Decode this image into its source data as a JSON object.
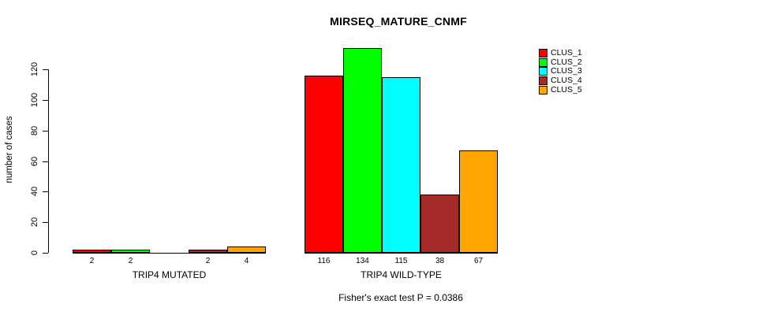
{
  "chart_data": {
    "type": "bar",
    "title": "MIRSEQ_MATURE_CNMF",
    "ylabel": "number of cases",
    "footer": "Fisher's exact test P = 0.0386",
    "ylim": [
      0,
      120
    ],
    "yticks": [
      0,
      20,
      40,
      60,
      80,
      100,
      120
    ],
    "grid": false,
    "legend_position": "top-right",
    "series": [
      {
        "name": "CLUS_1",
        "color": "#FF0000"
      },
      {
        "name": "CLUS_2",
        "color": "#00FF00"
      },
      {
        "name": "CLUS_3",
        "color": "#00FFFF"
      },
      {
        "name": "CLUS_4",
        "color": "#A52A2A"
      },
      {
        "name": "CLUS_5",
        "color": "#FFA500"
      }
    ],
    "groups": [
      {
        "label": "TRIP4 MUTATED",
        "values": [
          2,
          2,
          0,
          2,
          4
        ],
        "bar_labels": [
          "2",
          "2",
          "",
          "2",
          "4"
        ]
      },
      {
        "label": "TRIP4 WILD-TYPE",
        "values": [
          116,
          134,
          115,
          38,
          67
        ],
        "bar_labels": [
          "116",
          "134",
          "115",
          "38",
          "67"
        ]
      }
    ]
  }
}
